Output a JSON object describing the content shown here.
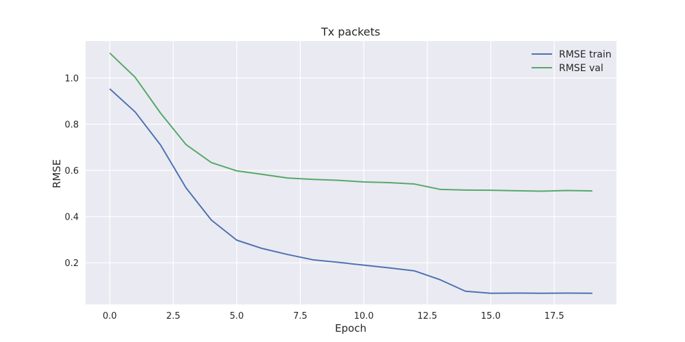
{
  "chart_data": {
    "type": "line",
    "title": "Tx packets",
    "xlabel": "Epoch",
    "ylabel": "RMSE",
    "xlim": [
      -0.95,
      19.95
    ],
    "ylim": [
      0.02,
      1.16
    ],
    "xticks": [
      "0.0",
      "2.5",
      "5.0",
      "7.5",
      "10.0",
      "12.5",
      "15.0",
      "17.5"
    ],
    "yticks": [
      "0.2",
      "0.4",
      "0.6",
      "0.8",
      "1.0"
    ],
    "grid": true,
    "legend_position": "top-right",
    "x": [
      0,
      1,
      2,
      3,
      4,
      5,
      6,
      7,
      8,
      9,
      10,
      11,
      12,
      13,
      14,
      15,
      16,
      17,
      18,
      19
    ],
    "series": [
      {
        "name": "RMSE train",
        "color": "#4c72b0",
        "values": [
          0.953,
          0.853,
          0.71,
          0.525,
          0.385,
          0.298,
          0.262,
          0.236,
          0.213,
          0.202,
          0.19,
          0.178,
          0.165,
          0.127,
          0.077,
          0.068,
          0.069,
          0.068,
          0.069,
          0.068
        ]
      },
      {
        "name": "RMSE val",
        "color": "#55a868",
        "values": [
          1.108,
          1.003,
          0.848,
          0.712,
          0.634,
          0.598,
          0.583,
          0.567,
          0.561,
          0.557,
          0.55,
          0.547,
          0.541,
          0.518,
          0.515,
          0.514,
          0.512,
          0.51,
          0.513,
          0.511
        ]
      }
    ]
  }
}
